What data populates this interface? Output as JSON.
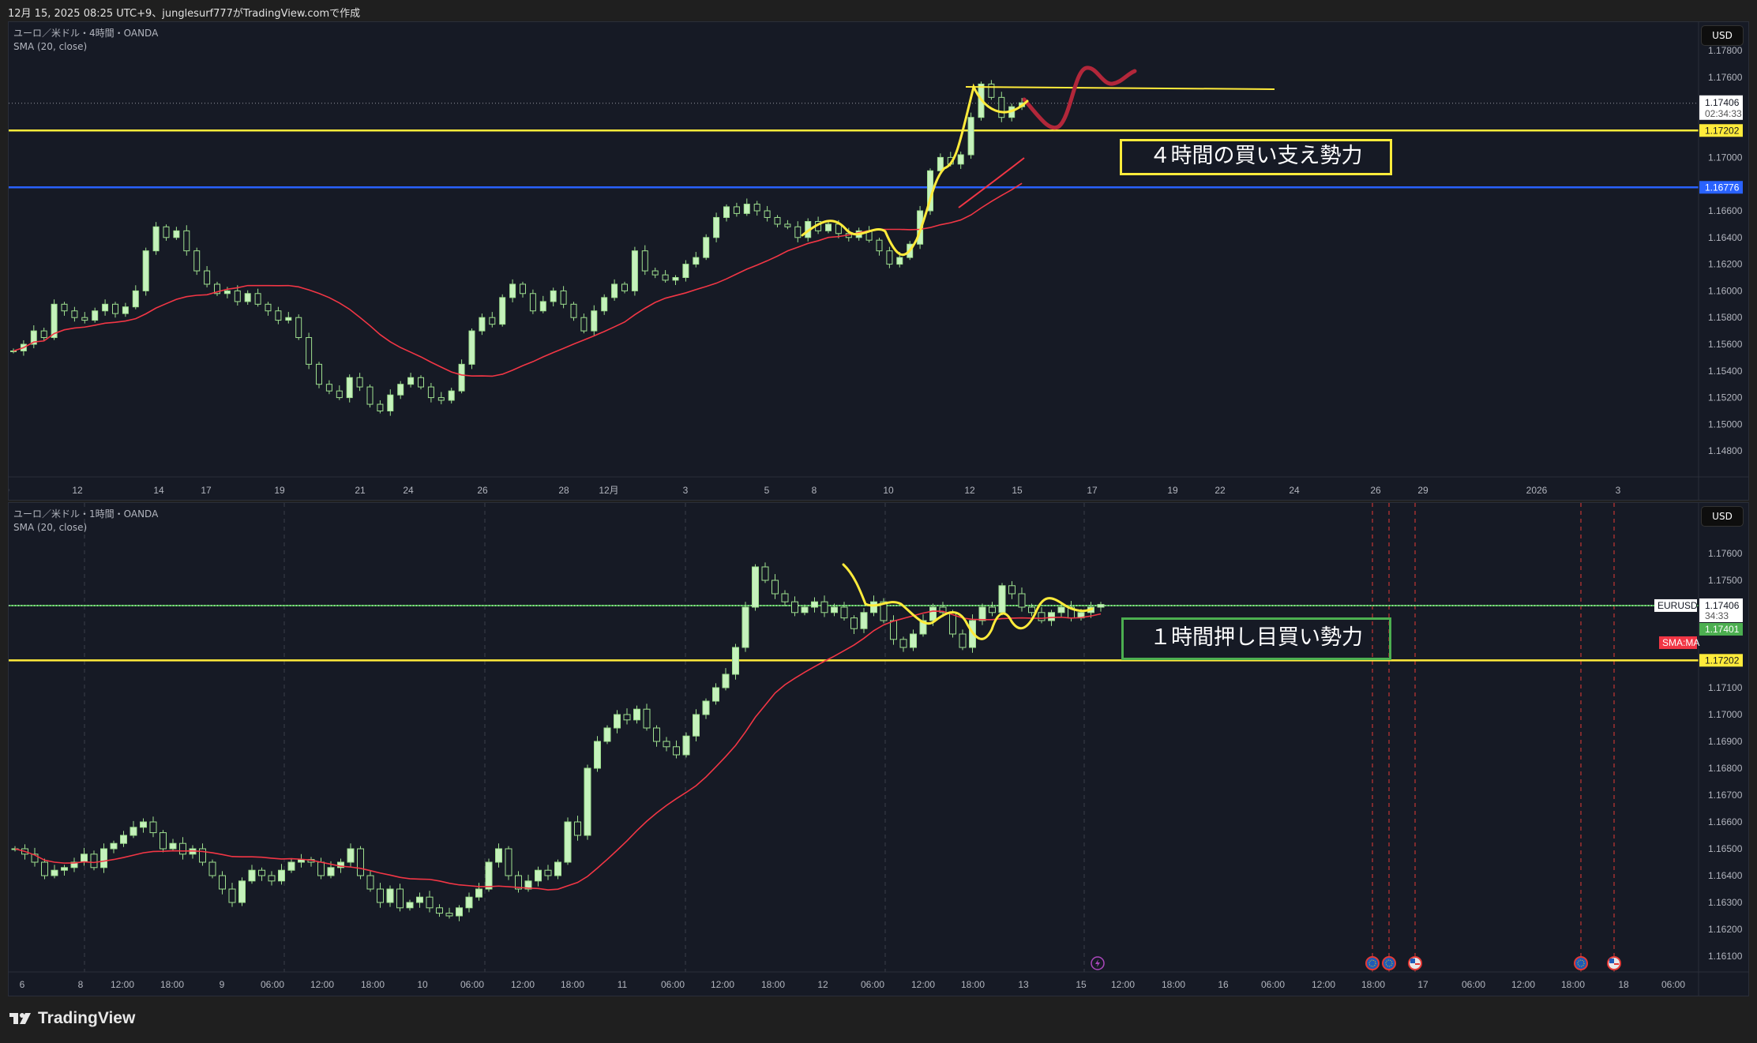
{
  "header": {
    "caption": "12月 15, 2025 08:25 UTC+9、junglesurf777がTradingView.comで作成"
  },
  "colors": {
    "bull": "#c5f2bc",
    "bear_border": "#9fe08f",
    "sma": "#f23645",
    "support_yellow": "#ffeb3b",
    "blue_line": "#2962ff",
    "green_line": "#4caf50",
    "background": "#161a25"
  },
  "top_pane": {
    "symbol_line": "ユーロ／米ドル・4時間・OANDA",
    "indicator": "SMA (20, close)",
    "currency": "USD",
    "price_labels": [
      "1.17800",
      "1.17600",
      "1.17000",
      "1.16600",
      "1.16400",
      "1.16200",
      "1.16000",
      "1.15800",
      "1.15600",
      "1.15400",
      "1.15200",
      "1.15000",
      "1.14800"
    ],
    "price_values": [
      1.178,
      1.176,
      1.17,
      1.166,
      1.164,
      1.162,
      1.16,
      1.158,
      1.156,
      1.154,
      1.152,
      1.15,
      1.148
    ],
    "last_price": "1.17406",
    "countdown": "02:34:33",
    "yellow_level": "1.17202",
    "blue_level": "1.16776",
    "time_labels": [
      "10",
      "12",
      "14",
      "17",
      "19",
      "21",
      "24",
      "26",
      "28",
      "12月",
      "3",
      "5",
      "8",
      "10",
      "12",
      "15",
      "17",
      "19",
      "22",
      "24",
      "26",
      "29",
      "2026",
      "3"
    ],
    "annotation": "４時間の買い支え勢力",
    "closes": [
      1.1555,
      1.156,
      1.157,
      1.1565,
      1.159,
      1.1585,
      1.158,
      1.1578,
      1.1585,
      1.159,
      1.1583,
      1.1588,
      1.16,
      1.163,
      1.1648,
      1.164,
      1.1645,
      1.163,
      1.1615,
      1.1605,
      1.1598,
      1.16,
      1.1592,
      1.1598,
      1.159,
      1.1585,
      1.1578,
      1.158,
      1.1565,
      1.1545,
      1.153,
      1.1525,
      1.152,
      1.1535,
      1.1528,
      1.1515,
      1.151,
      1.1522,
      1.153,
      1.1535,
      1.1528,
      1.152,
      1.1518,
      1.1525,
      1.1545,
      1.157,
      1.158,
      1.1575,
      1.1595,
      1.1605,
      1.1598,
      1.1585,
      1.1592,
      1.16,
      1.159,
      1.158,
      1.157,
      1.1585,
      1.1595,
      1.1605,
      1.16,
      1.163,
      1.1615,
      1.1612,
      1.1608,
      1.161,
      1.162,
      1.1625,
      1.164,
      1.1655,
      1.1663,
      1.1658,
      1.1665,
      1.166,
      1.1655,
      1.165,
      1.1648,
      1.164,
      1.1652,
      1.1645,
      1.165,
      1.1643,
      1.164,
      1.1645,
      1.1638,
      1.163,
      1.162,
      1.1625,
      1.1635,
      1.166,
      1.169,
      1.17,
      1.1695,
      1.1702,
      1.173,
      1.1755,
      1.1745,
      1.173,
      1.1738,
      1.1741
    ]
  },
  "bottom_pane": {
    "symbol_line": "ユーロ／米ドル・1時間・OANDA",
    "indicator": "SMA (20, close)",
    "currency": "USD",
    "price_labels": [
      "1.17600",
      "1.17500",
      "1.17100",
      "1.17000",
      "1.16900",
      "1.16800",
      "1.16700",
      "1.16600",
      "1.16500",
      "1.16400",
      "1.16300",
      "1.16200",
      "1.16100"
    ],
    "price_values": [
      1.176,
      1.175,
      1.171,
      1.17,
      1.169,
      1.168,
      1.167,
      1.166,
      1.165,
      1.164,
      1.163,
      1.162,
      1.161
    ],
    "symbol_tag": "EURUSD",
    "last_price": "1.17406",
    "countdown": "34:33",
    "sma_value": "1.17401",
    "sma_tag": "SMA:MA",
    "yellow_level": "1.17202",
    "time_labels": [
      "6",
      "8",
      "12:00",
      "18:00",
      "9",
      "06:00",
      "12:00",
      "18:00",
      "10",
      "06:00",
      "12:00",
      "18:00",
      "11",
      "06:00",
      "12:00",
      "18:00",
      "12",
      "06:00",
      "12:00",
      "18:00",
      "13",
      "15",
      "12:00",
      "18:00",
      "16",
      "06:00",
      "12:00",
      "18:00",
      "17",
      "06:00",
      "12:00",
      "18:00",
      "18",
      "06:00"
    ],
    "annotation": "１時間押し目買い勢力",
    "events": [
      {
        "icon": "lightning-icon"
      },
      {
        "icon": "eu-flag-icon"
      },
      {
        "icon": "eu-flag-icon"
      },
      {
        "icon": "us-flag-icon"
      },
      {
        "icon": "eu-flag-icon"
      },
      {
        "icon": "us-flag-icon"
      }
    ],
    "closes": [
      1.165,
      1.1648,
      1.1645,
      1.164,
      1.1642,
      1.1643,
      1.1645,
      1.1648,
      1.1643,
      1.165,
      1.1652,
      1.1655,
      1.1658,
      1.166,
      1.1656,
      1.165,
      1.1652,
      1.1648,
      1.165,
      1.1645,
      1.164,
      1.1635,
      1.163,
      1.1638,
      1.1642,
      1.164,
      1.1638,
      1.1642,
      1.1645,
      1.1646,
      1.1645,
      1.164,
      1.1643,
      1.1645,
      1.165,
      1.164,
      1.1635,
      1.163,
      1.1635,
      1.1628,
      1.163,
      1.1632,
      1.1628,
      1.1626,
      1.1625,
      1.1628,
      1.1632,
      1.1635,
      1.1645,
      1.165,
      1.164,
      1.1635,
      1.1638,
      1.1642,
      1.164,
      1.1645,
      1.166,
      1.1655,
      1.168,
      1.169,
      1.1695,
      1.17,
      1.1698,
      1.1702,
      1.1695,
      1.169,
      1.1688,
      1.1685,
      1.1692,
      1.17,
      1.1705,
      1.171,
      1.1715,
      1.1725,
      1.174,
      1.1755,
      1.175,
      1.1745,
      1.1742,
      1.1738,
      1.174,
      1.1742,
      1.1738,
      1.174,
      1.1736,
      1.1732,
      1.1738,
      1.1742,
      1.1735,
      1.1728,
      1.1725,
      1.173,
      1.1735,
      1.174,
      1.1738,
      1.173,
      1.1725,
      1.1735,
      1.174,
      1.1738,
      1.1748,
      1.1745,
      1.174,
      1.1738,
      1.1735,
      1.1738,
      1.174,
      1.1736,
      1.1738,
      1.174,
      1.1741
    ]
  },
  "footer": {
    "brand": "TradingView"
  }
}
